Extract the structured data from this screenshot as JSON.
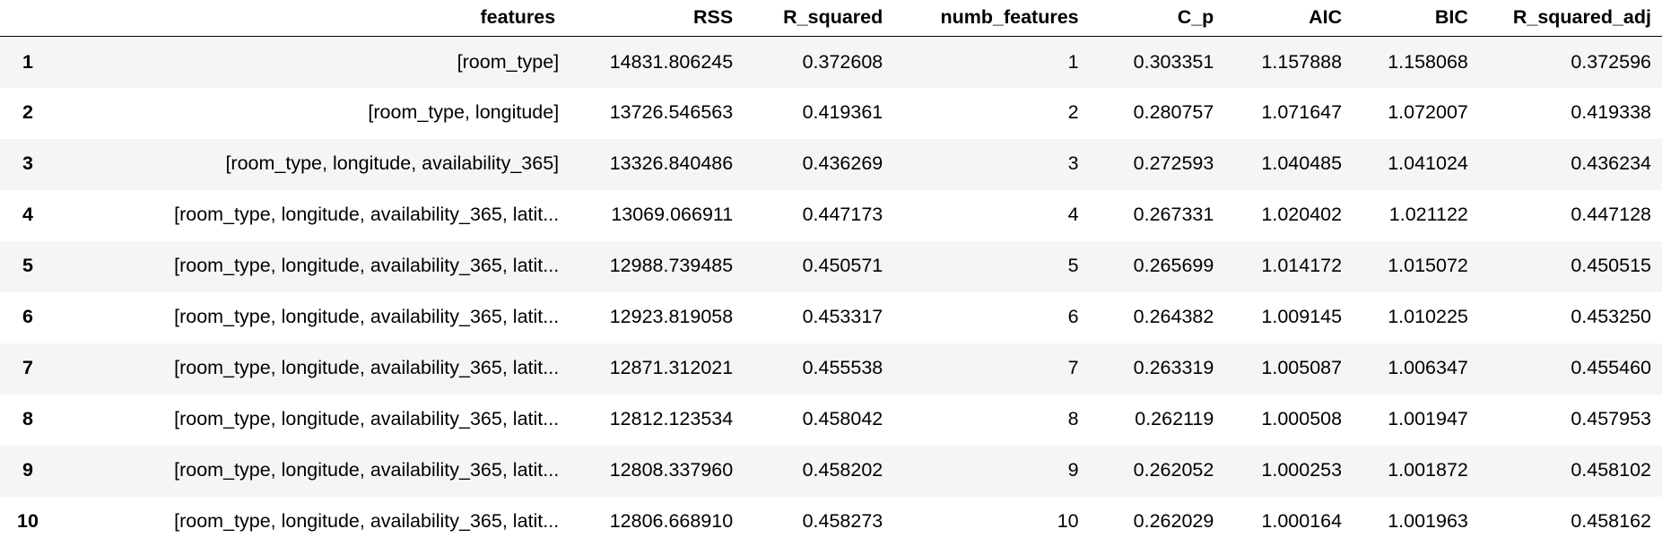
{
  "table": {
    "columns": [
      "features",
      "RSS",
      "R_squared",
      "numb_features",
      "C_p",
      "AIC",
      "BIC",
      "R_squared_adj"
    ],
    "rows": [
      {
        "index": "1",
        "features": "[room_type]",
        "RSS": "14831.806245",
        "R_squared": "0.372608",
        "numb_features": "1",
        "C_p": "0.303351",
        "AIC": "1.157888",
        "BIC": "1.158068",
        "R_squared_adj": "0.372596"
      },
      {
        "index": "2",
        "features": "[room_type, longitude]",
        "RSS": "13726.546563",
        "R_squared": "0.419361",
        "numb_features": "2",
        "C_p": "0.280757",
        "AIC": "1.071647",
        "BIC": "1.072007",
        "R_squared_adj": "0.419338"
      },
      {
        "index": "3",
        "features": "[room_type, longitude, availability_365]",
        "RSS": "13326.840486",
        "R_squared": "0.436269",
        "numb_features": "3",
        "C_p": "0.272593",
        "AIC": "1.040485",
        "BIC": "1.041024",
        "R_squared_adj": "0.436234"
      },
      {
        "index": "4",
        "features": "[room_type, longitude, availability_365, latit...",
        "RSS": "13069.066911",
        "R_squared": "0.447173",
        "numb_features": "4",
        "C_p": "0.267331",
        "AIC": "1.020402",
        "BIC": "1.021122",
        "R_squared_adj": "0.447128"
      },
      {
        "index": "5",
        "features": "[room_type, longitude, availability_365, latit...",
        "RSS": "12988.739485",
        "R_squared": "0.450571",
        "numb_features": "5",
        "C_p": "0.265699",
        "AIC": "1.014172",
        "BIC": "1.015072",
        "R_squared_adj": "0.450515"
      },
      {
        "index": "6",
        "features": "[room_type, longitude, availability_365, latit...",
        "RSS": "12923.819058",
        "R_squared": "0.453317",
        "numb_features": "6",
        "C_p": "0.264382",
        "AIC": "1.009145",
        "BIC": "1.010225",
        "R_squared_adj": "0.453250"
      },
      {
        "index": "7",
        "features": "[room_type, longitude, availability_365, latit...",
        "RSS": "12871.312021",
        "R_squared": "0.455538",
        "numb_features": "7",
        "C_p": "0.263319",
        "AIC": "1.005087",
        "BIC": "1.006347",
        "R_squared_adj": "0.455460"
      },
      {
        "index": "8",
        "features": "[room_type, longitude, availability_365, latit...",
        "RSS": "12812.123534",
        "R_squared": "0.458042",
        "numb_features": "8",
        "C_p": "0.262119",
        "AIC": "1.000508",
        "BIC": "1.001947",
        "R_squared_adj": "0.457953"
      },
      {
        "index": "9",
        "features": "[room_type, longitude, availability_365, latit...",
        "RSS": "12808.337960",
        "R_squared": "0.458202",
        "numb_features": "9",
        "C_p": "0.262052",
        "AIC": "1.000253",
        "BIC": "1.001872",
        "R_squared_adj": "0.458102"
      },
      {
        "index": "10",
        "features": "[room_type, longitude, availability_365, latit...",
        "RSS": "12806.668910",
        "R_squared": "0.458273",
        "numb_features": "10",
        "C_p": "0.262029",
        "AIC": "1.000164",
        "BIC": "1.001963",
        "R_squared_adj": "0.458162"
      }
    ]
  }
}
